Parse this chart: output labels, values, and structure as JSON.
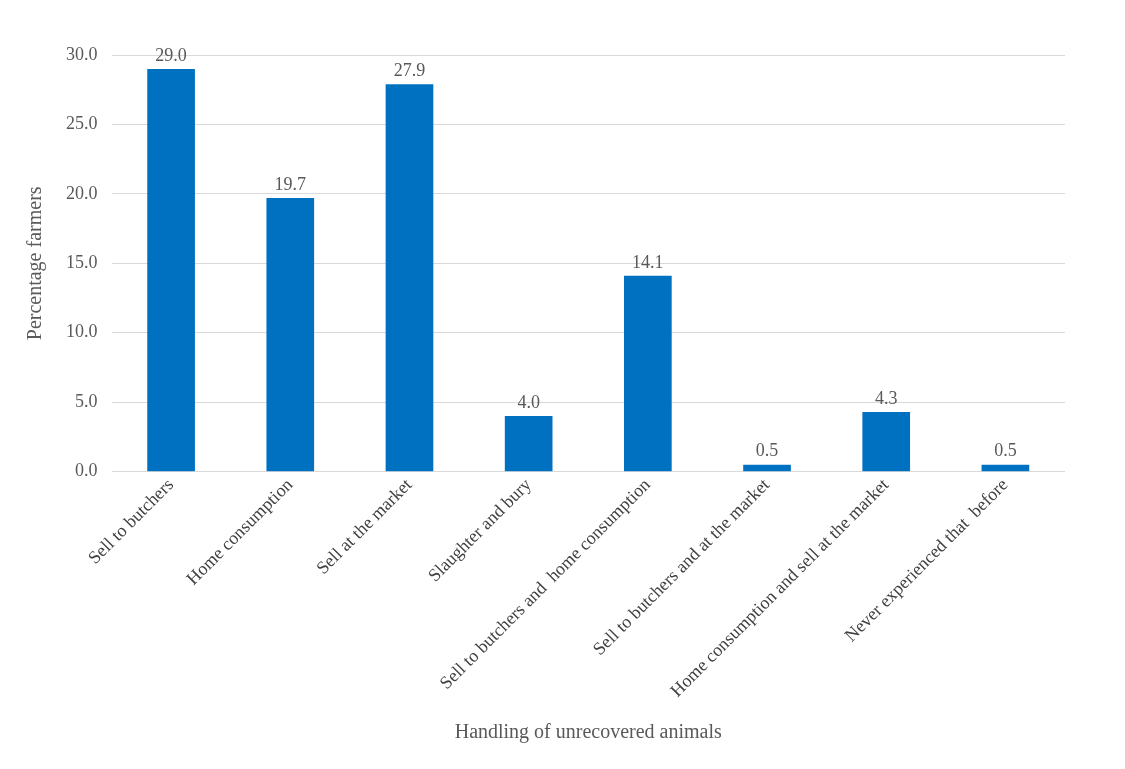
{
  "chart_data": {
    "type": "bar",
    "xlabel": "Handling of unrecovered animals",
    "ylabel": "Percentage farmers",
    "categories": [
      "Sell to butchers",
      "Home consumption",
      "Sell at the market",
      "Slaughter and bury",
      "Sell to butchers and  home consumption",
      "Sell to butchers and at the market",
      "Home consumption and sell at the market",
      "Never experienced that  before"
    ],
    "values": [
      29.0,
      19.7,
      27.9,
      4.0,
      14.1,
      0.5,
      4.3,
      0.5
    ],
    "value_labels": [
      "29.0",
      "19.7",
      "27.9",
      "4.0",
      "14.1",
      "0.5",
      "4.3",
      "0.5"
    ],
    "color": "#0070c0",
    "ylim": [
      0,
      30
    ],
    "yticks": [
      {
        "value": 0,
        "label": "0.0"
      },
      {
        "value": 5,
        "label": "5.0"
      },
      {
        "value": 10,
        "label": "10.0"
      },
      {
        "value": 15,
        "label": "15.0"
      },
      {
        "value": 20,
        "label": "20.0"
      },
      {
        "value": 25,
        "label": "25.0"
      },
      {
        "value": 30,
        "label": "30.0"
      }
    ],
    "grid": "y",
    "legend": false
  }
}
